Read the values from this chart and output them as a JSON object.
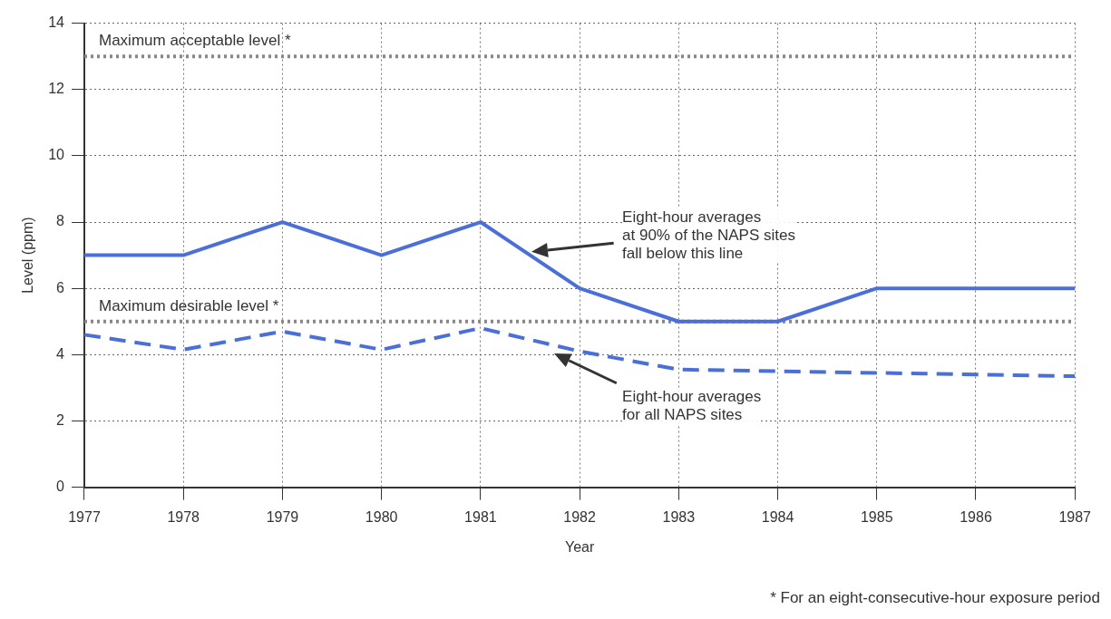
{
  "chart_data": {
    "type": "line",
    "xlabel": "Year",
    "ylabel": "Level (ppm)",
    "x": [
      1977,
      1978,
      1979,
      1980,
      1981,
      1982,
      1983,
      1984,
      1985,
      1986,
      1987
    ],
    "series": [
      {
        "color": "#4a6fd8",
        "line_style": "solid",
        "values": [
          7,
          7,
          8,
          7,
          8,
          6,
          5,
          5,
          6,
          6,
          6
        ]
      },
      {
        "color": "#4a6fd8",
        "line_style": "dashed",
        "values": [
          4.6,
          4.15,
          4.7,
          4.15,
          4.8,
          4.1,
          3.55,
          3.5,
          3.45,
          3.4,
          3.35
        ]
      }
    ],
    "xlim": [
      1977,
      1987
    ],
    "xticks": [
      1977,
      1978,
      1979,
      1980,
      1981,
      1982,
      1983,
      1984,
      1985,
      1986,
      1987
    ],
    "ylim": [
      0,
      14
    ],
    "yticks": [
      0,
      2,
      4,
      6,
      8,
      10,
      12,
      14
    ],
    "grid": true,
    "legend": false,
    "marker": "none",
    "ref_lines": [
      {
        "axis": "y",
        "value": 13,
        "label": "Maximum acceptable level *",
        "color": "#888888",
        "line_style": "dotted"
      },
      {
        "axis": "y",
        "value": 5,
        "label": "Maximum desirable level *",
        "color": "#888888",
        "line_style": "dotted"
      }
    ],
    "annotations": [
      "Eight-hour averages\nat 90% of the NAPS sites\nfall below this line",
      "Eight-hour averages\nfor all NAPS sites",
      "* For an eight-consecutive-hour exposure period"
    ]
  }
}
